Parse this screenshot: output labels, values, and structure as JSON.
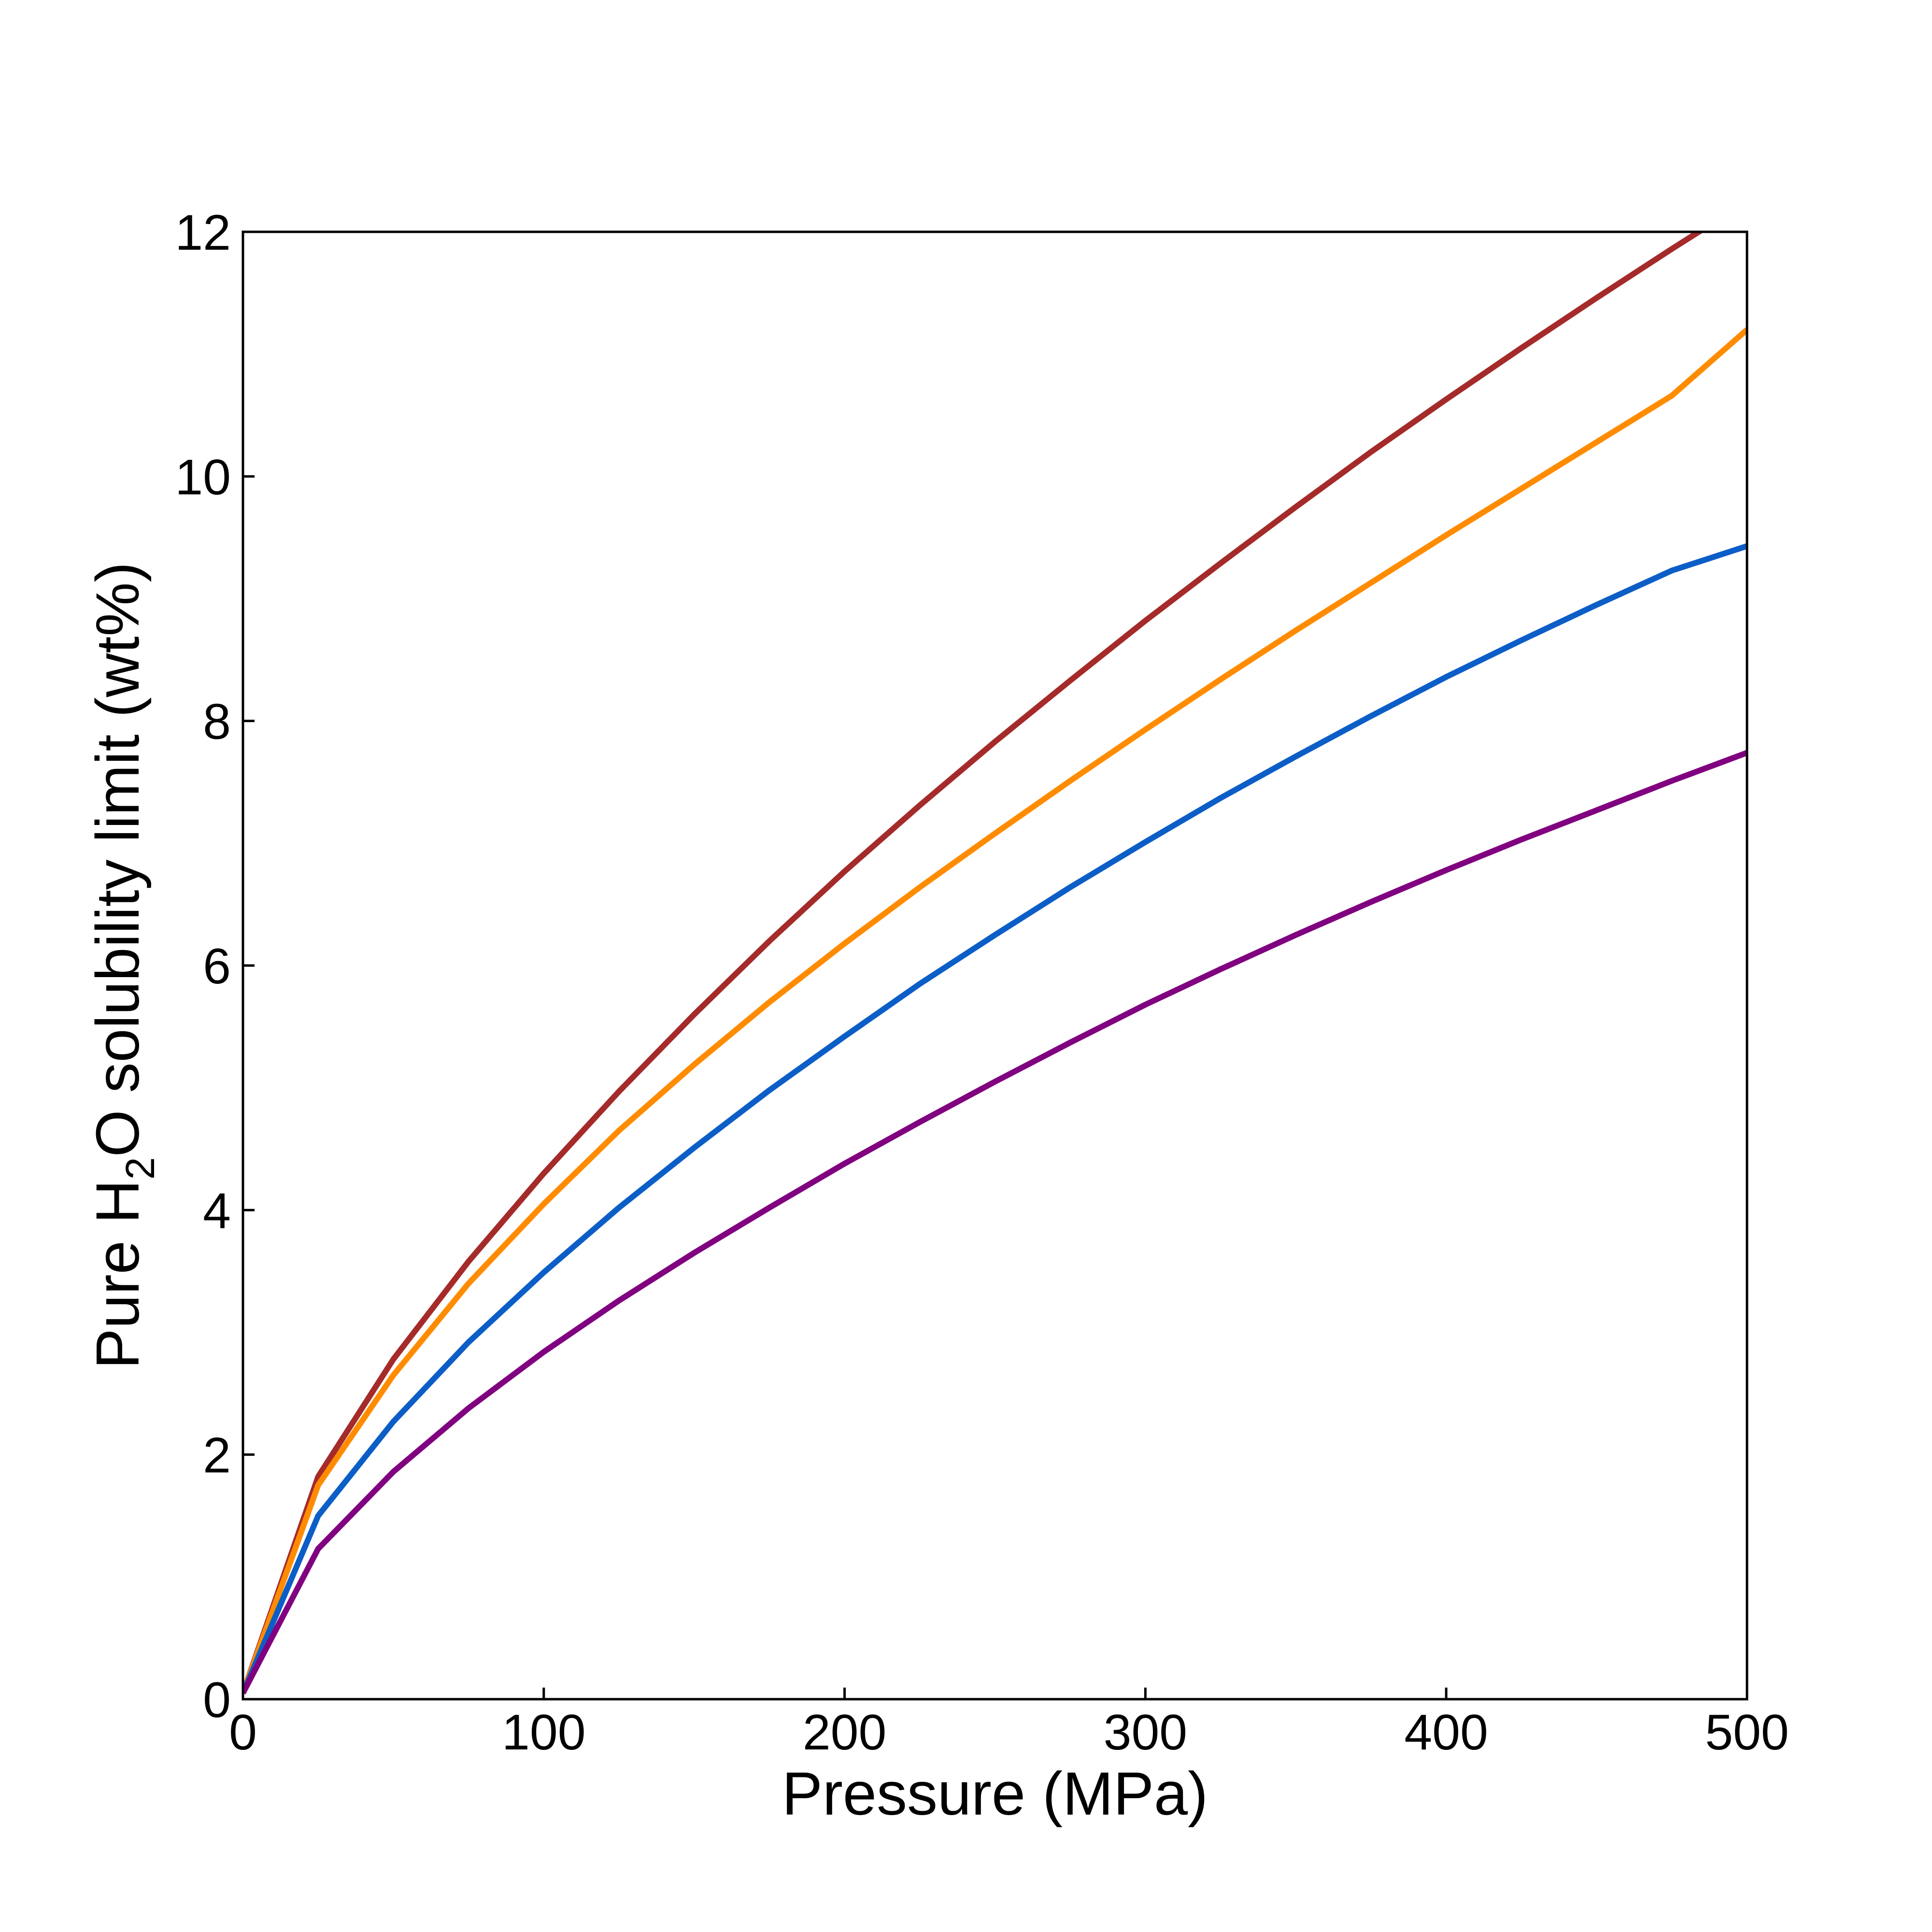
{
  "chart_data": {
    "type": "line",
    "title": "",
    "xlabel": "Pressure (MPa)",
    "ylabel": {
      "prefix": "Pure H",
      "subscript": "2",
      "suffix": "O solubility limit (wt%)"
    },
    "xlim": [
      0,
      500
    ],
    "ylim": [
      0,
      12
    ],
    "xticks": [
      "0",
      "100",
      "200",
      "300",
      "400",
      "500"
    ],
    "yticks": [
      "0",
      "2",
      "4",
      "6",
      "8",
      "10",
      "12"
    ],
    "grid": false,
    "legend": false,
    "series": [
      {
        "color": "#a52a2a",
        "x": [
          0,
          25,
          50,
          75,
          100,
          125,
          150,
          175,
          200,
          225,
          250,
          275,
          300,
          325,
          350,
          375,
          400,
          425,
          450,
          475,
          500
        ],
        "y": [
          0.05,
          1.82,
          2.78,
          3.58,
          4.3,
          4.97,
          5.6,
          6.2,
          6.77,
          7.31,
          7.83,
          8.33,
          8.82,
          9.29,
          9.75,
          10.2,
          10.63,
          11.05,
          11.46,
          11.86,
          12.25
        ]
      },
      {
        "color": "#ff8c00",
        "x": [
          0,
          25,
          50,
          75,
          100,
          125,
          150,
          175,
          200,
          225,
          250,
          275,
          300,
          325,
          350,
          375,
          400,
          425,
          450,
          475,
          500
        ],
        "y": [
          0.05,
          1.75,
          2.65,
          3.4,
          4.05,
          4.65,
          5.19,
          5.7,
          6.18,
          6.64,
          7.08,
          7.51,
          7.93,
          8.34,
          8.74,
          9.13,
          9.52,
          9.9,
          10.28,
          10.66,
          11.2
        ]
      },
      {
        "color": "#0c5ec7",
        "x": [
          0,
          25,
          50,
          75,
          100,
          125,
          150,
          175,
          200,
          225,
          250,
          275,
          300,
          325,
          350,
          375,
          400,
          425,
          450,
          475,
          500
        ],
        "y": [
          0.05,
          1.5,
          2.27,
          2.92,
          3.49,
          4.02,
          4.51,
          4.98,
          5.42,
          5.85,
          6.25,
          6.64,
          7.01,
          7.37,
          7.71,
          8.04,
          8.36,
          8.66,
          8.95,
          9.23,
          9.43
        ]
      },
      {
        "color": "#800080",
        "x": [
          0,
          25,
          50,
          75,
          100,
          125,
          150,
          175,
          200,
          225,
          250,
          275,
          300,
          325,
          350,
          375,
          400,
          425,
          450,
          475,
          500
        ],
        "y": [
          0.05,
          1.23,
          1.86,
          2.38,
          2.84,
          3.26,
          3.65,
          4.02,
          4.38,
          4.72,
          5.05,
          5.37,
          5.68,
          5.97,
          6.25,
          6.52,
          6.78,
          7.03,
          7.27,
          7.51,
          7.74
        ]
      }
    ]
  }
}
